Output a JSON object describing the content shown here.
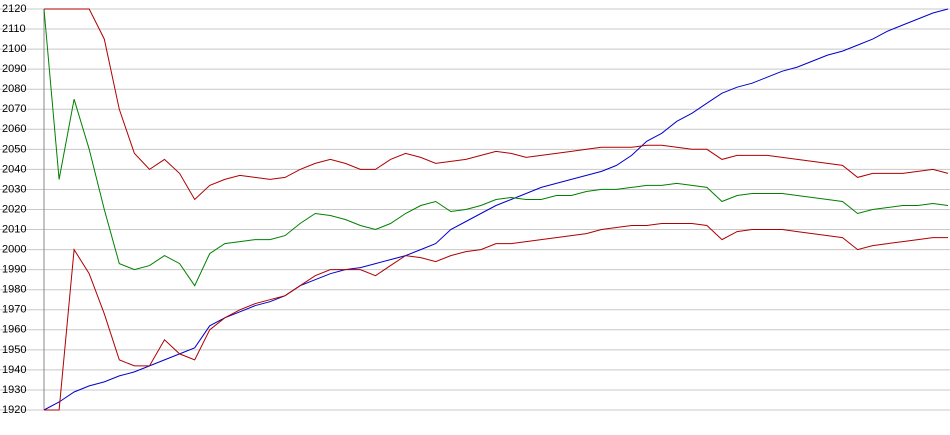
{
  "chart_data": {
    "type": "line",
    "categories": [
      null,
      null,
      null,
      null,
      null,
      null,
      null,
      null,
      null,
      null,
      null,
      null,
      null,
      null,
      null,
      null,
      null,
      null,
      null,
      null,
      null,
      null,
      null,
      null,
      null,
      null,
      null,
      null,
      null,
      null,
      null,
      null,
      null,
      null,
      null,
      null,
      null,
      null,
      null,
      null,
      null,
      null,
      null,
      null,
      null,
      null,
      null,
      null,
      null,
      null,
      null,
      null,
      null,
      null,
      null,
      null,
      null,
      null,
      null,
      null,
      null
    ],
    "series": [
      {
        "color": "#0000cc",
        "values": [
          1920,
          1924,
          1929,
          1932,
          1934,
          1937,
          1939,
          1942,
          1945,
          1948,
          1951,
          1962,
          1966,
          1969,
          1972,
          1974,
          1977,
          1982,
          1985,
          1988,
          1990,
          1991,
          1993,
          1995,
          1997,
          2000,
          2003,
          2010,
          2014,
          2018,
          2022,
          2025,
          2028,
          2031,
          2033,
          2035,
          2037,
          2039,
          2042,
          2047,
          2054,
          2058,
          2064,
          2068,
          2073,
          2078,
          2081,
          2083,
          2086,
          2089,
          2091,
          2094,
          2097,
          2099,
          2102,
          2105,
          2109,
          2112,
          2115,
          2118,
          2120
        ]
      },
      {
        "color": "#008000",
        "values": [
          2120,
          2035,
          2075,
          2050,
          2020,
          1993,
          1990,
          1992,
          1997,
          1993,
          1982,
          1998,
          2003,
          2004,
          2005,
          2005,
          2007,
          2013,
          2018,
          2017,
          2015,
          2012,
          2010,
          2013,
          2018,
          2022,
          2024,
          2019,
          2020,
          2022,
          2025,
          2026,
          2025,
          2025,
          2027,
          2027,
          2029,
          2030,
          2030,
          2031,
          2032,
          2032,
          2033,
          2032,
          2031,
          2024,
          2027,
          2028,
          2028,
          2028,
          2027,
          2026,
          2025,
          2024,
          2018,
          2020,
          2021,
          2022,
          2022,
          2023,
          2022
        ]
      },
      {
        "color": "#b00000",
        "values": [
          2120,
          2120,
          2120,
          2120,
          2105,
          2070,
          2048,
          2040,
          2045,
          2038,
          2025,
          2032,
          2035,
          2037,
          2036,
          2035,
          2036,
          2040,
          2043,
          2045,
          2043,
          2040,
          2040,
          2045,
          2048,
          2046,
          2043,
          2044,
          2045,
          2047,
          2049,
          2048,
          2046,
          2047,
          2048,
          2049,
          2050,
          2051,
          2051,
          2051,
          2052,
          2052,
          2051,
          2050,
          2050,
          2045,
          2047,
          2047,
          2047,
          2046,
          2045,
          2044,
          2043,
          2042,
          2036,
          2038,
          2038,
          2038,
          2039,
          2040,
          2038
        ]
      },
      {
        "color": "#b00000",
        "values": [
          1920,
          1920,
          2000,
          1988,
          1968,
          1945,
          1942,
          1942,
          1955,
          1948,
          1945,
          1960,
          1966,
          1970,
          1973,
          1975,
          1977,
          1982,
          1987,
          1990,
          1990,
          1990,
          1987,
          1992,
          1997,
          1996,
          1994,
          1997,
          1999,
          2000,
          2003,
          2003,
          2004,
          2005,
          2006,
          2007,
          2008,
          2010,
          2011,
          2012,
          2012,
          2013,
          2013,
          2013,
          2012,
          2005,
          2009,
          2010,
          2010,
          2010,
          2009,
          2008,
          2007,
          2006,
          2000,
          2002,
          2003,
          2004,
          2005,
          2006,
          2006
        ]
      }
    ],
    "ylim": [
      1920,
      2120
    ],
    "yticks": [
      1920,
      1930,
      1940,
      1950,
      1960,
      1970,
      1980,
      1990,
      2000,
      2010,
      2020,
      2030,
      2040,
      2050,
      2060,
      2070,
      2080,
      2090,
      2100,
      2110,
      2120
    ],
    "grid": true
  }
}
